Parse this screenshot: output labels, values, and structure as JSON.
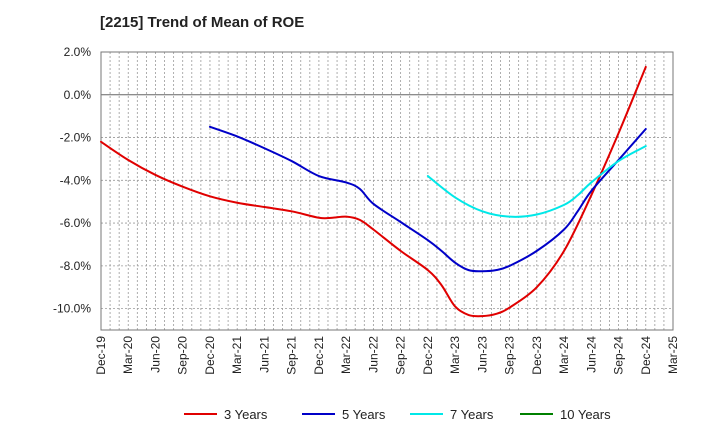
{
  "chart_data": {
    "type": "line",
    "title": "[2215]  Trend of Mean of ROE",
    "xlabel": "",
    "ylabel": "",
    "x_categories": [
      "Dec-19",
      "Mar-20",
      "Jun-20",
      "Sep-20",
      "Dec-20",
      "Mar-21",
      "Jun-21",
      "Sep-21",
      "Dec-21",
      "Mar-22",
      "Jun-22",
      "Sep-22",
      "Dec-22",
      "Mar-23",
      "Jun-23",
      "Sep-23",
      "Dec-23",
      "Mar-24",
      "Jun-24",
      "Sep-24",
      "Dec-24",
      "Mar-25"
    ],
    "ylim": [
      -11,
      2
    ],
    "y_ticks": [
      2,
      0,
      -2,
      -4,
      -6,
      -8,
      -10
    ],
    "y_tick_labels": [
      "2.0%",
      "0.0%",
      "-2.0%",
      "-4.0%",
      "-6.0%",
      "-8.0%",
      "-10.0%"
    ],
    "grid": true,
    "legend_position": "bottom",
    "series": [
      {
        "name": "3 Years",
        "color": "#e00000",
        "points": [
          [
            0,
            -2.2
          ],
          [
            1,
            -3.05
          ],
          [
            2,
            -3.75
          ],
          [
            3,
            -4.3
          ],
          [
            4,
            -4.75
          ],
          [
            5,
            -5.05
          ],
          [
            6,
            -5.25
          ],
          [
            7,
            -5.45
          ],
          [
            8,
            -5.75
          ],
          [
            8.5,
            -5.75
          ],
          [
            9,
            -5.7
          ],
          [
            9.5,
            -5.85
          ],
          [
            10,
            -6.3
          ],
          [
            11,
            -7.3
          ],
          [
            12,
            -8.2
          ],
          [
            12.5,
            -8.9
          ],
          [
            13,
            -9.9
          ],
          [
            13.5,
            -10.3
          ],
          [
            14,
            -10.35
          ],
          [
            14.5,
            -10.25
          ],
          [
            15,
            -9.95
          ],
          [
            16,
            -9.0
          ],
          [
            17,
            -7.3
          ],
          [
            18,
            -4.7
          ],
          [
            19,
            -1.8
          ],
          [
            20,
            1.3
          ]
        ]
      },
      {
        "name": "5 Years",
        "color": "#0000c8",
        "points": [
          [
            4,
            -1.5
          ],
          [
            5,
            -1.95
          ],
          [
            6,
            -2.5
          ],
          [
            7,
            -3.1
          ],
          [
            8,
            -3.8
          ],
          [
            9,
            -4.1
          ],
          [
            9.5,
            -4.4
          ],
          [
            10,
            -5.1
          ],
          [
            11,
            -5.95
          ],
          [
            12,
            -6.8
          ],
          [
            12.5,
            -7.3
          ],
          [
            13,
            -7.85
          ],
          [
            13.5,
            -8.2
          ],
          [
            14,
            -8.25
          ],
          [
            14.5,
            -8.2
          ],
          [
            15,
            -8.0
          ],
          [
            16,
            -7.3
          ],
          [
            17,
            -6.3
          ],
          [
            17.5,
            -5.45
          ],
          [
            18,
            -4.5
          ],
          [
            19,
            -3.05
          ],
          [
            20,
            -1.6
          ]
        ]
      },
      {
        "name": "7 Years",
        "color": "#00e8e8",
        "points": [
          [
            12,
            -3.8
          ],
          [
            13,
            -4.8
          ],
          [
            14,
            -5.45
          ],
          [
            15,
            -5.7
          ],
          [
            16,
            -5.6
          ],
          [
            17,
            -5.15
          ],
          [
            17.5,
            -4.7
          ],
          [
            18,
            -4.1
          ],
          [
            19,
            -3.1
          ],
          [
            20,
            -2.4
          ]
        ]
      },
      {
        "name": "10 Years",
        "color": "#008000",
        "points": []
      }
    ]
  }
}
